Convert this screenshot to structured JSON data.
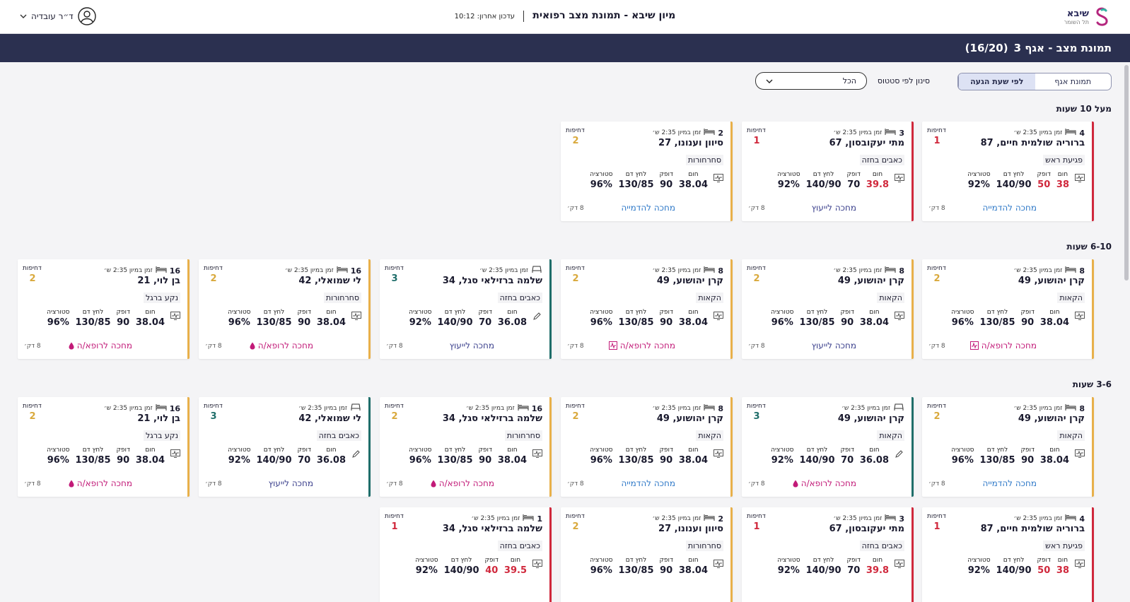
{
  "app": {
    "logo_name": "שיבא",
    "logo_sub": "תל השומר",
    "title": "מיון שיבא - תמונת מצב רפואית",
    "last_update": "עדכון אחרון: 10:12",
    "user_name": "ד״ר עובדיה",
    "icons": {
      "logo": "sheba-logo-icon",
      "user": "user-avatar-icon",
      "menu": "chevron-down-icon"
    }
  },
  "strip": {
    "title": "תמונת מצב - אגף 3",
    "count": "(16/20)"
  },
  "toolbar": {
    "view_tabs": [
      "תמונת אגף",
      "לפי שעת הגעה"
    ],
    "active_tab": "לפי שעת הגעה",
    "filter_label": "סינון לפי סטטוס",
    "filter_value": "הכל"
  },
  "labels": {
    "urgency": "דחיפות",
    "time_in_er": "זמן במיון 2:35 ש׳",
    "vitals": [
      "חום",
      "דופק",
      "לחץ דם",
      "סטורציה"
    ],
    "minutes": "8 דק׳"
  },
  "colors": {
    "red": "#d0283c",
    "orange": "#e8b04a",
    "teal": "#1f6e6a",
    "radiology": "#2f79c8",
    "consult": "#3a3f8c",
    "doctor": "#c21a78",
    "header": "#2b3050"
  },
  "groups": [
    {
      "title": "מעל 10 שעות",
      "cards": [
        {
          "bed": "4",
          "bed_icon": "bed-icon",
          "name": "ברוריה שולמית חיים, 87",
          "complaint": "פגיעת ראש",
          "urgency": "1",
          "color": "red",
          "vitals": [
            "38",
            "50",
            "140/90",
            "92%"
          ],
          "high": [
            true,
            true,
            false,
            false
          ],
          "side_icon": "monitor-icon",
          "wait": "מחכה להדמייה",
          "wait_type": "rad"
        },
        {
          "bed": "3",
          "bed_icon": "bed-icon",
          "name": "מתי יעקובסון, 67",
          "complaint": "כאבים בחזה",
          "urgency": "1",
          "color": "red",
          "vitals": [
            "39.8",
            "70",
            "140/90",
            "92%"
          ],
          "high": [
            true,
            false,
            false,
            false
          ],
          "side_icon": "monitor-icon",
          "wait": "מחכה לייעוץ",
          "wait_type": "con"
        },
        {
          "bed": "2",
          "bed_icon": "bed-icon",
          "name": "סיוון וענונו, 27",
          "complaint": "סחרחורות",
          "urgency": "2",
          "color": "orange",
          "vitals": [
            "38.04",
            "90",
            "130/85",
            "96%"
          ],
          "high": [
            false,
            false,
            false,
            false
          ],
          "side_icon": "monitor-icon",
          "wait": "מחכה להדמייה",
          "wait_type": "rad"
        }
      ]
    },
    {
      "title": "6-10 שעות",
      "cards": [
        {
          "bed": "8",
          "bed_icon": "bed-icon",
          "name": "קרן יהושוע, 49",
          "complaint": "הקאות",
          "urgency": "2",
          "color": "orange",
          "vitals": [
            "38.04",
            "90",
            "130/85",
            "96%"
          ],
          "high": [
            false,
            false,
            false,
            false
          ],
          "side_icon": "monitor-icon",
          "wait": "מחכה לרופא/ה",
          "wait_type": "doc",
          "wait_icon": "ecg-icon"
        },
        {
          "bed": "8",
          "bed_icon": "bed-icon",
          "name": "קרן יהושוע, 49",
          "complaint": "הקאות",
          "urgency": "2",
          "color": "orange",
          "vitals": [
            "38.04",
            "90",
            "130/85",
            "96%"
          ],
          "high": [
            false,
            false,
            false,
            false
          ],
          "side_icon": "monitor-icon",
          "wait": "מחכה לייעוץ",
          "wait_type": "con"
        },
        {
          "bed": "8",
          "bed_icon": "bed-icon",
          "name": "קרן יהושוע, 49",
          "complaint": "הקאות",
          "urgency": "2",
          "color": "orange",
          "vitals": [
            "38.04",
            "90",
            "130/85",
            "96%"
          ],
          "high": [
            false,
            false,
            false,
            false
          ],
          "side_icon": "monitor-icon",
          "wait": "מחכה לרופא/ה",
          "wait_type": "doc",
          "wait_icon": "ecg-icon"
        },
        {
          "bed": "",
          "bed_icon": "chair-icon",
          "name": "שלמה ברזילאי סגל, 34",
          "complaint": "כאבים בחזה",
          "urgency": "3",
          "color": "teal",
          "vitals": [
            "36.08",
            "70",
            "140/90",
            "92%"
          ],
          "high": [
            false,
            false,
            false,
            false
          ],
          "side_icon": "pencil-icon",
          "wait": "מחכה לייעוץ",
          "wait_type": "con"
        },
        {
          "bed": "16",
          "bed_icon": "bed-icon",
          "name": "לי שמואלי, 42",
          "complaint": "סחרחורות",
          "urgency": "2",
          "color": "orange",
          "vitals": [
            "38.04",
            "90",
            "130/85",
            "96%"
          ],
          "high": [
            false,
            false,
            false,
            false
          ],
          "side_icon": "monitor-icon",
          "wait": "מחכה לרופא/ה",
          "wait_type": "doc",
          "wait_icon": "drop-icon"
        },
        {
          "bed": "16",
          "bed_icon": "bed-icon",
          "name": "בן לוי, 21",
          "complaint": "נקע ברגל",
          "urgency": "2",
          "color": "orange",
          "vitals": [
            "38.04",
            "90",
            "130/85",
            "96%"
          ],
          "high": [
            false,
            false,
            false,
            false
          ],
          "side_icon": "monitor-icon",
          "wait": "מחכה לרופא/ה",
          "wait_type": "doc",
          "wait_icon": "drop-icon"
        }
      ]
    },
    {
      "title": "3-6 שעות",
      "cards": [
        {
          "bed": "8",
          "bed_icon": "bed-icon",
          "name": "קרן יהושוע, 49",
          "complaint": "הקאות",
          "urgency": "2",
          "color": "orange",
          "vitals": [
            "38.04",
            "90",
            "130/85",
            "96%"
          ],
          "high": [
            false,
            false,
            false,
            false
          ],
          "side_icon": "monitor-icon",
          "wait": "מחכה להדמייה",
          "wait_type": "rad"
        },
        {
          "bed": "",
          "bed_icon": "chair-icon",
          "name": "קרן יהושוע, 49",
          "complaint": "הקאות",
          "urgency": "3",
          "color": "teal",
          "vitals": [
            "36.08",
            "70",
            "140/90",
            "92%"
          ],
          "high": [
            false,
            false,
            false,
            false
          ],
          "side_icon": "pencil-icon",
          "wait": "מחכה לרופא/ה",
          "wait_type": "doc",
          "wait_icon": "drop-icon"
        },
        {
          "bed": "8",
          "bed_icon": "bed-icon",
          "name": "קרן יהושוע, 49",
          "complaint": "הקאות",
          "urgency": "2",
          "color": "orange",
          "vitals": [
            "38.04",
            "90",
            "130/85",
            "96%"
          ],
          "high": [
            false,
            false,
            false,
            false
          ],
          "side_icon": "monitor-icon",
          "wait": "מחכה להדמייה",
          "wait_type": "rad"
        },
        {
          "bed": "16",
          "bed_icon": "bed-icon",
          "name": "שלמה ברזילאי סגל, 34",
          "complaint": "סחרחורות",
          "urgency": "2",
          "color": "orange",
          "vitals": [
            "38.04",
            "90",
            "130/85",
            "96%"
          ],
          "high": [
            false,
            false,
            false,
            false
          ],
          "side_icon": "monitor-icon",
          "wait": "מחכה לרופא/ה",
          "wait_type": "doc",
          "wait_icon": "drop-icon"
        },
        {
          "bed": "",
          "bed_icon": "chair-icon",
          "name": "לי שמואלי, 42",
          "complaint": "כאבים בחזה",
          "urgency": "3",
          "color": "teal",
          "vitals": [
            "36.08",
            "70",
            "140/90",
            "92%"
          ],
          "high": [
            false,
            false,
            false,
            false
          ],
          "side_icon": "pencil-icon",
          "wait": "מחכה לייעוץ",
          "wait_type": "con"
        },
        {
          "bed": "16",
          "bed_icon": "bed-icon",
          "name": "בן לוי, 21",
          "complaint": "נקע ברגל",
          "urgency": "2",
          "color": "orange",
          "vitals": [
            "38.04",
            "90",
            "130/85",
            "96%"
          ],
          "high": [
            false,
            false,
            false,
            false
          ],
          "side_icon": "monitor-icon",
          "wait": "מחכה לרופא/ה",
          "wait_type": "doc",
          "wait_icon": "drop-icon"
        },
        {
          "bed": "4",
          "bed_icon": "bed-icon",
          "name": "ברוריה שולמית חיים, 87",
          "complaint": "פגיעת ראש",
          "urgency": "1",
          "color": "red",
          "vitals": [
            "38",
            "50",
            "140/90",
            "92%"
          ],
          "high": [
            true,
            true,
            false,
            false
          ],
          "side_icon": "monitor-icon"
        },
        {
          "bed": "3",
          "bed_icon": "bed-icon",
          "name": "מתי יעקובסון, 67",
          "complaint": "כאבים בחזה",
          "urgency": "1",
          "color": "red",
          "vitals": [
            "39.8",
            "70",
            "140/90",
            "92%"
          ],
          "high": [
            true,
            false,
            false,
            false
          ],
          "side_icon": "monitor-icon"
        },
        {
          "bed": "2",
          "bed_icon": "bed-icon",
          "name": "סיוון וענונו, 27",
          "complaint": "סחרחורות",
          "urgency": "2",
          "color": "orange",
          "vitals": [
            "38.04",
            "90",
            "130/85",
            "96%"
          ],
          "high": [
            false,
            false,
            false,
            false
          ],
          "side_icon": "monitor-icon"
        },
        {
          "bed": "1",
          "bed_icon": "bed-icon",
          "name": "שלמה ברזילאי סגל, 34",
          "complaint": "כאבים בחזה",
          "urgency": "1",
          "color": "red",
          "vitals": [
            "39.5",
            "40",
            "140/90",
            "92%"
          ],
          "high": [
            true,
            true,
            false,
            false
          ],
          "side_icon": "monitor-icon"
        }
      ]
    }
  ]
}
